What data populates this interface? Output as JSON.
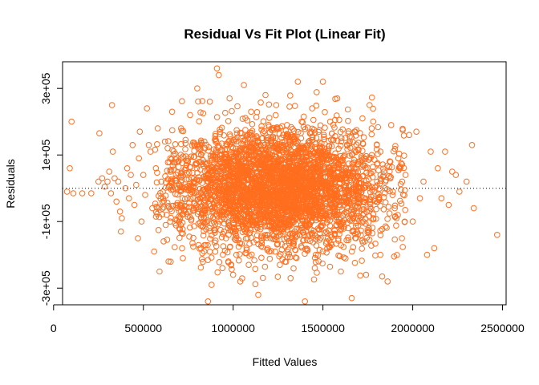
{
  "chart_data": {
    "type": "scatter",
    "title": "Residual Vs Fit Plot (Linear Fit)",
    "xlabel": "Fitted Values",
    "ylabel": "Residuals",
    "xlim": [
      50000,
      2520000
    ],
    "ylim": [
      -350000,
      380000
    ],
    "xticks": [
      0,
      500000,
      1000000,
      1500000,
      2000000,
      2500000
    ],
    "xtick_labels": [
      "0",
      "500000",
      "1000000",
      "1500000",
      "2000000",
      "2500000"
    ],
    "yticks": [
      -300000,
      -100000,
      100000,
      300000
    ],
    "ytick_labels": [
      "-3e+05",
      "-1e+05",
      "1e+05",
      "3e+05"
    ],
    "reference_line": {
      "y": 0,
      "style": "dotted"
    },
    "point_color": "#ff6e1e",
    "grid": false,
    "legend": "none",
    "points": [
      [
        75000,
        -10000
      ],
      [
        90000,
        60000
      ],
      [
        100000,
        200000
      ],
      [
        110000,
        -15000
      ],
      [
        160000,
        -15000
      ],
      [
        210000,
        -15000
      ],
      [
        250000,
        20000
      ],
      [
        255000,
        165000
      ],
      [
        270000,
        30000
      ],
      [
        285000,
        5000
      ],
      [
        300000,
        20000
      ],
      [
        310000,
        50000
      ],
      [
        320000,
        -15000
      ],
      [
        325000,
        250000
      ],
      [
        330000,
        110000
      ],
      [
        340000,
        30000
      ],
      [
        350000,
        -40000
      ],
      [
        360000,
        20000
      ],
      [
        370000,
        -70000
      ],
      [
        375000,
        -130000
      ],
      [
        380000,
        -90000
      ],
      [
        400000,
        0
      ],
      [
        410000,
        60000
      ],
      [
        420000,
        -30000
      ],
      [
        430000,
        40000
      ],
      [
        440000,
        130000
      ],
      [
        450000,
        -50000
      ],
      [
        460000,
        10000
      ],
      [
        470000,
        -150000
      ],
      [
        475000,
        90000
      ],
      [
        480000,
        170000
      ],
      [
        490000,
        -100000
      ],
      [
        500000,
        40000
      ],
      [
        510000,
        -20000
      ],
      [
        520000,
        240000
      ],
      [
        530000,
        130000
      ],
      [
        540000,
        110000
      ],
      [
        550000,
        -60000
      ],
      [
        560000,
        -190000
      ],
      [
        570000,
        60000
      ],
      [
        580000,
        180000
      ],
      [
        590000,
        -250000
      ],
      [
        600000,
        20000
      ],
      [
        610000,
        -30000
      ],
      [
        620000,
        140000
      ],
      [
        630000,
        -80000
      ],
      [
        640000,
        -220000
      ],
      [
        650000,
        90000
      ],
      [
        660000,
        230000
      ],
      [
        680000,
        30000
      ],
      [
        700000,
        -120000
      ],
      [
        710000,
        180000
      ],
      [
        720000,
        -210000
      ],
      [
        740000,
        70000
      ],
      [
        760000,
        220000
      ],
      [
        780000,
        -60000
      ],
      [
        800000,
        300000
      ],
      [
        820000,
        -180000
      ],
      [
        840000,
        140000
      ],
      [
        860000,
        -340000
      ],
      [
        870000,
        260000
      ],
      [
        880000,
        -290000
      ],
      [
        900000,
        50000
      ],
      [
        910000,
        360000
      ],
      [
        920000,
        340000
      ],
      [
        940000,
        -240000
      ],
      [
        960000,
        -50000
      ],
      [
        980000,
        270000
      ],
      [
        1000000,
        -260000
      ],
      [
        1020000,
        110000
      ],
      [
        1040000,
        -280000
      ],
      [
        1060000,
        310000
      ],
      [
        1080000,
        -150000
      ],
      [
        1100000,
        230000
      ],
      [
        1120000,
        -10000
      ],
      [
        1140000,
        -320000
      ],
      [
        1160000,
        150000
      ],
      [
        1180000,
        280000
      ],
      [
        1200000,
        -190000
      ],
      [
        1220000,
        60000
      ],
      [
        1240000,
        250000
      ],
      [
        1260000,
        -230000
      ],
      [
        1280000,
        -40000
      ],
      [
        1300000,
        190000
      ],
      [
        1320000,
        -270000
      ],
      [
        1340000,
        90000
      ],
      [
        1360000,
        320000
      ],
      [
        1380000,
        -110000
      ],
      [
        1400000,
        -340000
      ],
      [
        1420000,
        140000
      ],
      [
        1440000,
        240000
      ],
      [
        1460000,
        -200000
      ],
      [
        1480000,
        50000
      ],
      [
        1500000,
        320000
      ],
      [
        1520000,
        -160000
      ],
      [
        1540000,
        200000
      ],
      [
        1560000,
        -60000
      ],
      [
        1580000,
        270000
      ],
      [
        1600000,
        -250000
      ],
      [
        1620000,
        100000
      ],
      [
        1640000,
        -120000
      ],
      [
        1660000,
        -330000
      ],
      [
        1680000,
        170000
      ],
      [
        1700000,
        -20000
      ],
      [
        1720000,
        210000
      ],
      [
        1740000,
        -260000
      ],
      [
        1760000,
        250000
      ],
      [
        1780000,
        -90000
      ],
      [
        1800000,
        130000
      ],
      [
        1820000,
        -200000
      ],
      [
        1840000,
        50000
      ],
      [
        1860000,
        -280000
      ],
      [
        1880000,
        190000
      ],
      [
        1900000,
        -60000
      ],
      [
        1920000,
        90000
      ],
      [
        1940000,
        -150000
      ],
      [
        1960000,
        40000
      ],
      [
        1980000,
        160000
      ],
      [
        2000000,
        -100000
      ],
      [
        2020000,
        170000
      ],
      [
        2040000,
        -30000
      ],
      [
        2060000,
        20000
      ],
      [
        2080000,
        -200000
      ],
      [
        2100000,
        110000
      ],
      [
        2120000,
        -180000
      ],
      [
        2140000,
        60000
      ],
      [
        2160000,
        -30000
      ],
      [
        2180000,
        110000
      ],
      [
        2200000,
        -50000
      ],
      [
        2220000,
        50000
      ],
      [
        2240000,
        40000
      ],
      [
        2260000,
        -10000
      ],
      [
        2300000,
        20000
      ],
      [
        2330000,
        130000
      ],
      [
        2340000,
        -60000
      ],
      [
        2470000,
        -140000
      ]
    ],
    "dense_cloud": {
      "n": 3600,
      "seed": 11,
      "x_mean": 1250000,
      "x_sd": 300000,
      "y_sd": 90000,
      "x_range": [
        560000,
        1960000
      ],
      "y_range": [
        -290000,
        290000
      ]
    }
  }
}
